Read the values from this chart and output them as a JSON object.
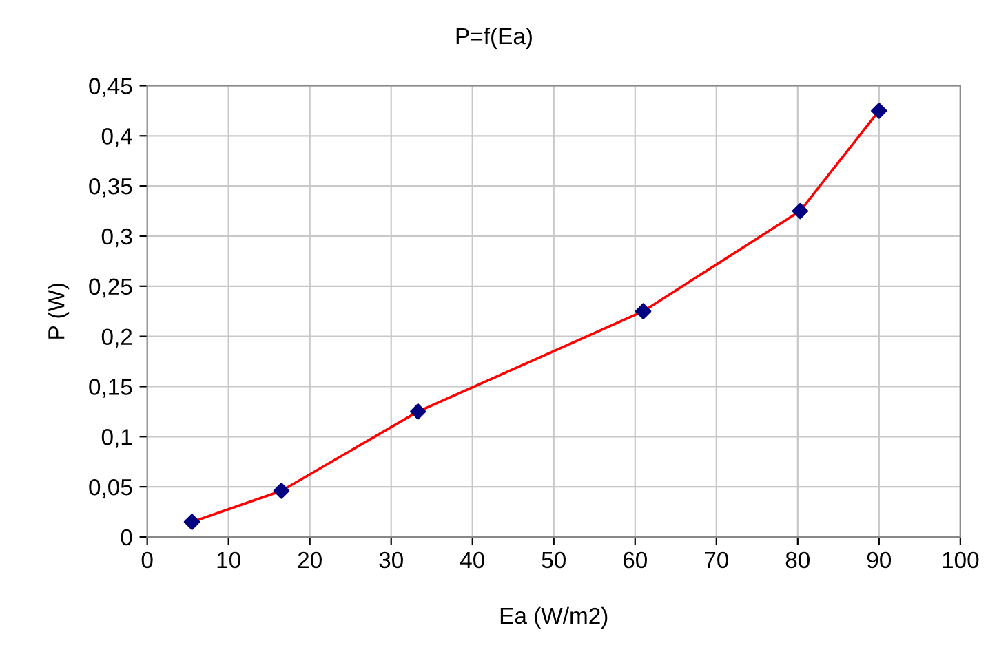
{
  "chart_data": {
    "type": "line",
    "title": "P=f(Ea)",
    "xlabel": "Ea (W/m2)",
    "ylabel": "P (W)",
    "series": [
      {
        "color": "#ff0000",
        "x": [
          5.5,
          16.5,
          33.3,
          61,
          80.3,
          90
        ],
        "values": [
          0.015,
          0.046,
          0.125,
          0.225,
          0.325,
          0.425
        ],
        "marker": "none"
      },
      {
        "type": "scatter",
        "color": "#000080",
        "x": [
          5.5,
          16.5,
          33.3,
          61,
          80.3,
          90
        ],
        "values": [
          0.015,
          0.046,
          0.125,
          0.225,
          0.325,
          0.425
        ],
        "marker": "diamond"
      }
    ],
    "xlim": [
      0,
      100
    ],
    "xticks": [
      0,
      10,
      20,
      30,
      40,
      50,
      60,
      70,
      80,
      90,
      100
    ],
    "ylim": [
      0,
      0.45
    ],
    "yticks": [
      {
        "value": 0,
        "label": "0"
      },
      {
        "value": 0.05,
        "label": "0,05"
      },
      {
        "value": 0.1,
        "label": "0,1"
      },
      {
        "value": 0.15,
        "label": "0,15"
      },
      {
        "value": 0.2,
        "label": "0,2"
      },
      {
        "value": 0.25,
        "label": "0,25"
      },
      {
        "value": 0.3,
        "label": "0,3"
      },
      {
        "value": 0.35,
        "label": "0,35"
      },
      {
        "value": 0.4,
        "label": "0,4"
      },
      {
        "value": 0.45,
        "label": "0,45"
      }
    ],
    "grid": true,
    "legend": false
  }
}
